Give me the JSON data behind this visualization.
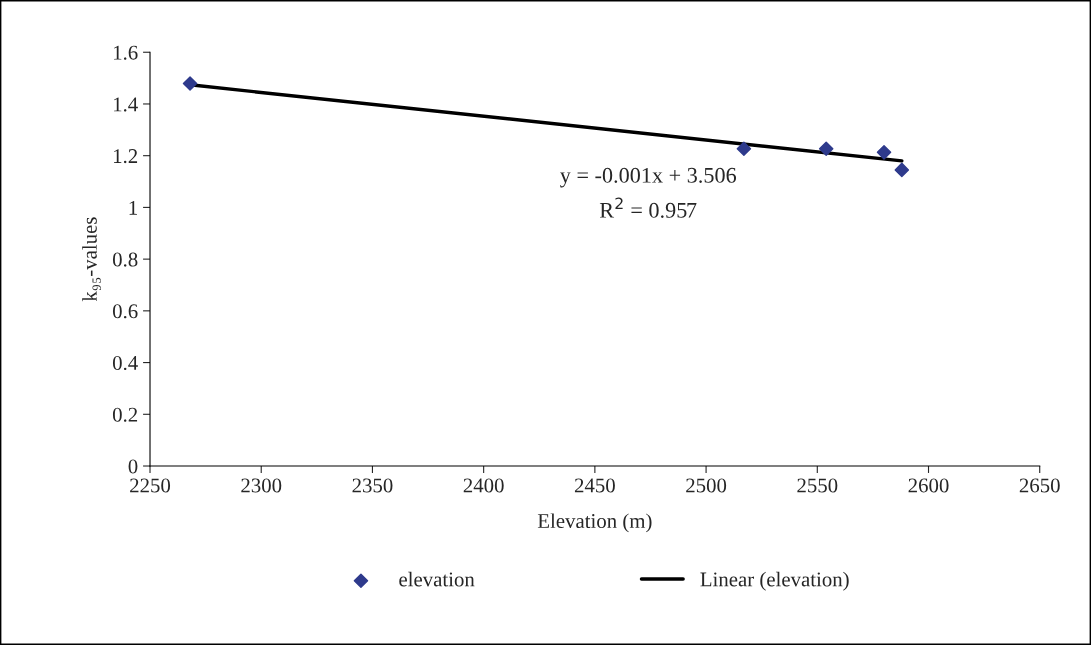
{
  "chart_data": {
    "type": "scatter",
    "xlabel": "Elevation (m)",
    "ylabel": "k₉₅-values",
    "series": [
      {
        "name": "elevation",
        "color": "#2e3a8c",
        "marker": "diamond",
        "x": [
          2268,
          2517,
          2554,
          2580,
          2588
        ],
        "values": [
          1.479,
          1.227,
          1.227,
          1.213,
          1.145
        ]
      },
      {
        "name": "Linear (elevation)",
        "type": "line",
        "color": "#000000",
        "line_style": "solid",
        "marker": "none",
        "x": [
          2268,
          2588
        ],
        "values": [
          1.474,
          1.18
        ]
      }
    ],
    "annotations": [
      "y = -0.001x + 3.506",
      "R$^{2}$ = 0.957"
    ],
    "xlim": [
      2250,
      2650
    ],
    "xticks": [
      2250,
      2300,
      2350,
      2400,
      2450,
      2500,
      2550,
      2600,
      2650
    ],
    "ylim": [
      0,
      1.6
    ],
    "yticks": [
      0,
      0.2,
      0.4,
      0.6,
      0.8,
      1,
      1.2,
      1.4,
      1.6
    ],
    "grid": false,
    "legend": "bottom"
  }
}
